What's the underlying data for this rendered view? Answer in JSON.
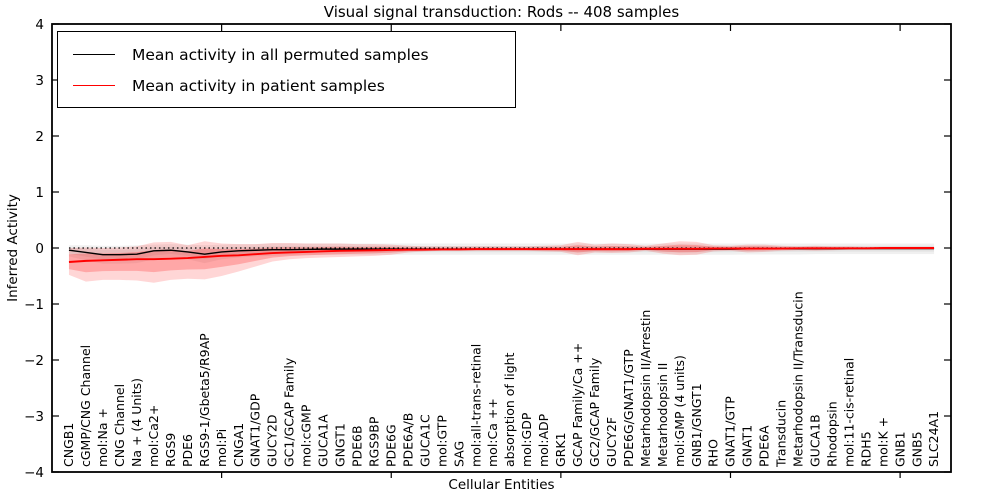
{
  "chart_data": {
    "type": "line",
    "title": "Visual signal transduction: Rods -- 408 samples",
    "xlabel": "Cellular Entities",
    "ylabel": "Inferred Activity",
    "ylim": [
      -4,
      4
    ],
    "yticks": [
      -4,
      -3,
      -2,
      -1,
      0,
      1,
      2,
      3,
      4
    ],
    "xlim": [
      0,
      53
    ],
    "xticks_major": [
      10,
      20,
      30,
      40,
      50
    ],
    "grid": false,
    "legend_position": "upper left",
    "zero_line": {
      "style": "dotted",
      "color": "#000000",
      "y": 0
    },
    "categories": [
      "CNGB1",
      "cGMP/CNG Channel",
      "mol:Na +",
      "CNG Channel",
      "Na + (4 Units)",
      "mol:Ca2+",
      "RGS9",
      "PDE6",
      "RGS9-1/Gbeta5/R9AP",
      "mol:Pi",
      "CNGA1",
      "GNAT1/GDP",
      "GUCY2D",
      "GC1/GCAP Family",
      "mol:cGMP",
      "GUCA1A",
      "GNGT1",
      "PDE6B",
      "RGS9BP",
      "PDE6G",
      "PDE6A/B",
      "GUCA1C",
      "mol:GTP",
      "SAG",
      "mol:all-trans-retinal",
      "mol:Ca ++",
      "absorption of light",
      "mol:GDP",
      "mol:ADP",
      "GRK1",
      "GCAP Family/Ca ++",
      "GC2/GCAP Family",
      "GUCY2F",
      "PDE6G/GNAT1/GTP",
      "Metarhodopsin II/Arrestin",
      "Metarhodopsin II",
      "mol:GMP (4 units)",
      "GNB1/GNGT1",
      "RHO",
      "GNAT1/GTP",
      "GNAT1",
      "PDE6A",
      "Transducin",
      "Metarhodopsin II/Transducin",
      "GUCA1B",
      "Rhodopsin",
      "mol:11-cis-retinal",
      "RDH5",
      "mol:K +",
      "GNB1",
      "GNB5",
      "SLC24A1"
    ],
    "series": [
      {
        "name": "Mean activity in all permuted samples",
        "color": "#000000",
        "width": 1.4,
        "values": [
          -0.04,
          -0.08,
          -0.12,
          -0.12,
          -0.11,
          -0.05,
          -0.04,
          -0.07,
          -0.11,
          -0.07,
          -0.05,
          -0.04,
          -0.03,
          -0.03,
          -0.025,
          -0.02,
          -0.02,
          -0.02,
          -0.02,
          -0.02,
          -0.02,
          -0.02,
          -0.02,
          -0.02,
          -0.02,
          -0.02,
          -0.02,
          -0.02,
          -0.02,
          -0.02,
          -0.02,
          -0.02,
          -0.02,
          -0.02,
          -0.02,
          -0.02,
          -0.02,
          -0.02,
          -0.02,
          -0.02,
          -0.015,
          -0.015,
          -0.015,
          -0.015,
          -0.015,
          -0.015,
          -0.01,
          -0.01,
          -0.01,
          -0.01,
          -0.01,
          -0.01
        ],
        "band": {
          "name": "permuted-samples-band",
          "alpha_outer": 0.06,
          "alpha_inner": 0.05,
          "upper": [
            0.05,
            0.05,
            0.04,
            0.04,
            0.05,
            0.06,
            0.07,
            0.06,
            0.05,
            0.06,
            0.07,
            0.07,
            0.08,
            0.08,
            0.08,
            0.08,
            0.08,
            0.08,
            0.08,
            0.08,
            0.08,
            0.08,
            0.08,
            0.08,
            0.08,
            0.08,
            0.08,
            0.08,
            0.08,
            0.08,
            0.08,
            0.08,
            0.08,
            0.08,
            0.08,
            0.08,
            0.08,
            0.08,
            0.08,
            0.08,
            0.08,
            0.08,
            0.08,
            0.08,
            0.08,
            0.08,
            0.08,
            0.08,
            0.08,
            0.08,
            0.08,
            0.08
          ],
          "lower": [
            -0.15,
            -0.22,
            -0.28,
            -0.28,
            -0.27,
            -0.2,
            -0.16,
            -0.2,
            -0.27,
            -0.2,
            -0.17,
            -0.15,
            -0.14,
            -0.13,
            -0.13,
            -0.12,
            -0.12,
            -0.12,
            -0.12,
            -0.12,
            -0.12,
            -0.12,
            -0.12,
            -0.12,
            -0.12,
            -0.12,
            -0.12,
            -0.12,
            -0.12,
            -0.12,
            -0.12,
            -0.12,
            -0.12,
            -0.12,
            -0.12,
            -0.12,
            -0.12,
            -0.12,
            -0.12,
            -0.12,
            -0.115,
            -0.115,
            -0.115,
            -0.115,
            -0.11,
            -0.11,
            -0.11,
            -0.11,
            -0.11,
            -0.11,
            -0.11,
            -0.11
          ]
        }
      },
      {
        "name": "Mean activity in patient samples",
        "color": "#ff0000",
        "width": 1.9,
        "values": [
          -0.25,
          -0.23,
          -0.22,
          -0.21,
          -0.2,
          -0.2,
          -0.19,
          -0.18,
          -0.16,
          -0.14,
          -0.13,
          -0.11,
          -0.09,
          -0.08,
          -0.07,
          -0.06,
          -0.05,
          -0.045,
          -0.04,
          -0.035,
          -0.03,
          -0.03,
          -0.025,
          -0.025,
          -0.02,
          -0.02,
          -0.02,
          -0.02,
          -0.02,
          -0.02,
          -0.02,
          -0.02,
          -0.02,
          -0.02,
          -0.015,
          -0.015,
          -0.015,
          -0.015,
          -0.01,
          -0.01,
          -0.01,
          -0.01,
          -0.01,
          -0.005,
          -0.005,
          -0.005,
          -0.005,
          -0.005,
          0.0,
          0.0,
          0.0,
          0.0
        ],
        "band": {
          "name": "patient-samples-band",
          "alpha_outer": 0.16,
          "alpha_inner": 0.22,
          "upper": [
            0.0,
            0.01,
            0.0,
            0.01,
            0.03,
            0.1,
            0.11,
            0.05,
            0.12,
            0.08,
            0.07,
            0.07,
            0.09,
            0.09,
            0.08,
            0.08,
            0.08,
            0.07,
            0.07,
            0.06,
            0.04,
            0.03,
            0.03,
            0.03,
            0.03,
            0.03,
            0.03,
            0.03,
            0.04,
            0.05,
            0.11,
            0.06,
            0.08,
            0.07,
            0.04,
            0.08,
            0.12,
            0.11,
            0.05,
            0.04,
            0.06,
            0.06,
            0.04,
            0.03,
            0.04,
            0.03,
            0.03,
            0.02,
            0.02,
            0.02,
            0.02,
            0.02
          ],
          "lower": [
            -0.48,
            -0.6,
            -0.57,
            -0.57,
            -0.58,
            -0.62,
            -0.57,
            -0.55,
            -0.56,
            -0.5,
            -0.42,
            -0.33,
            -0.24,
            -0.2,
            -0.18,
            -0.17,
            -0.16,
            -0.15,
            -0.14,
            -0.12,
            -0.08,
            -0.06,
            -0.05,
            -0.05,
            -0.05,
            -0.05,
            -0.05,
            -0.05,
            -0.06,
            -0.07,
            -0.13,
            -0.08,
            -0.09,
            -0.08,
            -0.05,
            -0.1,
            -0.13,
            -0.12,
            -0.06,
            -0.05,
            -0.08,
            -0.07,
            -0.05,
            -0.04,
            -0.05,
            -0.04,
            -0.03,
            -0.03,
            -0.03,
            -0.03,
            -0.03,
            -0.03
          ]
        }
      }
    ]
  }
}
